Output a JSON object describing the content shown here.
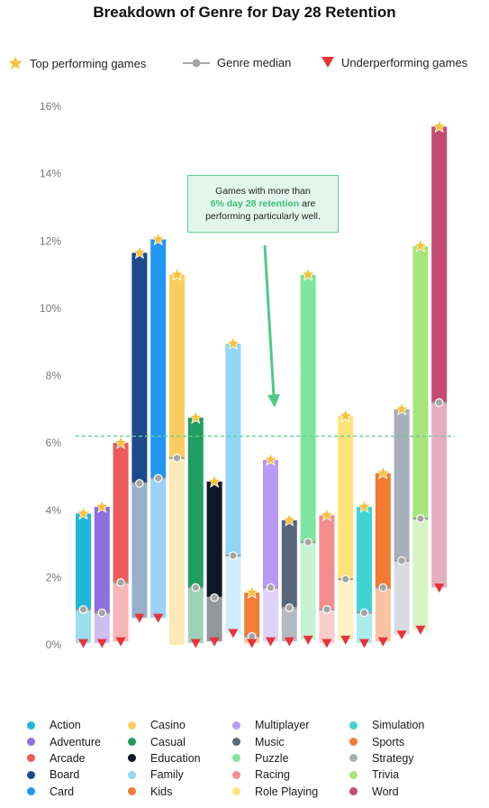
{
  "title": "Breakdown of Genre for Day 28 Retention",
  "legend": {
    "top_performing": "Top performing games",
    "median": "Genre median",
    "underperforming": "Underperforming games"
  },
  "annotation": {
    "line1": "Games with more than",
    "highlight": "6% day 28 retention",
    "line2": " are",
    "line3": "performing particularly well."
  },
  "colors": {
    "star": "#f8c13c",
    "under": "#e8333a",
    "median": "#a5a5a5",
    "threshold": "#5fcf95"
  },
  "chart_data": {
    "type": "bar",
    "subtype": "range",
    "title": "Breakdown of Genre for Day 28 Retention",
    "ylim": [
      0,
      16
    ],
    "yticks": [
      "0%",
      "2%",
      "4%",
      "6%",
      "8%",
      "10%",
      "12%",
      "14%",
      "16%"
    ],
    "threshold": 6.2,
    "series": [
      {
        "name": "Action",
        "color": "#21b5d8",
        "top": 3.9,
        "median": 1.05,
        "under": 0.05
      },
      {
        "name": "Adventure",
        "color": "#8d6fe0",
        "top": 4.1,
        "median": 0.95,
        "under": 0.05
      },
      {
        "name": "Arcade",
        "color": "#ed5a5a",
        "top": 6.0,
        "median": 1.85,
        "under": 0.1
      },
      {
        "name": "Board",
        "color": "#1c4a8c",
        "top": 11.65,
        "median": 4.8,
        "under": 0.8
      },
      {
        "name": "Card",
        "color": "#2196f3",
        "top": 12.05,
        "median": 4.95,
        "under": 0.8
      },
      {
        "name": "Casino",
        "color": "#fbcd5e",
        "top": 11.0,
        "median": 5.55,
        "under": null
      },
      {
        "name": "Casual",
        "color": "#229e62",
        "top": 6.75,
        "median": 1.7,
        "under": 0.05
      },
      {
        "name": "Education",
        "color": "#0f172b",
        "top": 4.85,
        "median": 1.4,
        "under": 0.1
      },
      {
        "name": "Family",
        "color": "#8fd6f7",
        "top": 8.95,
        "median": 2.65,
        "under": 0.35
      },
      {
        "name": "Kids",
        "color": "#f27d37",
        "top": 1.55,
        "median": 0.25,
        "under": 0.05
      },
      {
        "name": "Multiplayer",
        "color": "#b89af5",
        "top": 5.5,
        "median": 1.7,
        "under": 0.1
      },
      {
        "name": "Music",
        "color": "#58667a",
        "top": 3.7,
        "median": 1.1,
        "under": 0.1
      },
      {
        "name": "Puzzle",
        "color": "#7de59f",
        "top": 11.0,
        "median": 3.05,
        "under": 0.15
      },
      {
        "name": "Racing",
        "color": "#f48e8e",
        "top": 3.85,
        "median": 1.05,
        "under": 0.05
      },
      {
        "name": "Role Playing",
        "color": "#fde37a",
        "top": 6.8,
        "median": 1.95,
        "under": 0.15
      },
      {
        "name": "Simulation",
        "color": "#3fd4d2",
        "top": 4.1,
        "median": 0.95,
        "under": 0.05
      },
      {
        "name": "Sports",
        "color": "#f27a31",
        "top": 5.1,
        "median": 1.7,
        "under": 0.1
      },
      {
        "name": "Strategy",
        "color": "#a6b0ba",
        "top": 7.0,
        "median": 2.5,
        "under": 0.3
      },
      {
        "name": "Trivia",
        "color": "#a9e47a",
        "top": 11.85,
        "median": 3.75,
        "under": 0.45
      },
      {
        "name": "Word",
        "color": "#c54a72",
        "top": 15.4,
        "median": 7.2,
        "under": 1.7
      }
    ]
  }
}
